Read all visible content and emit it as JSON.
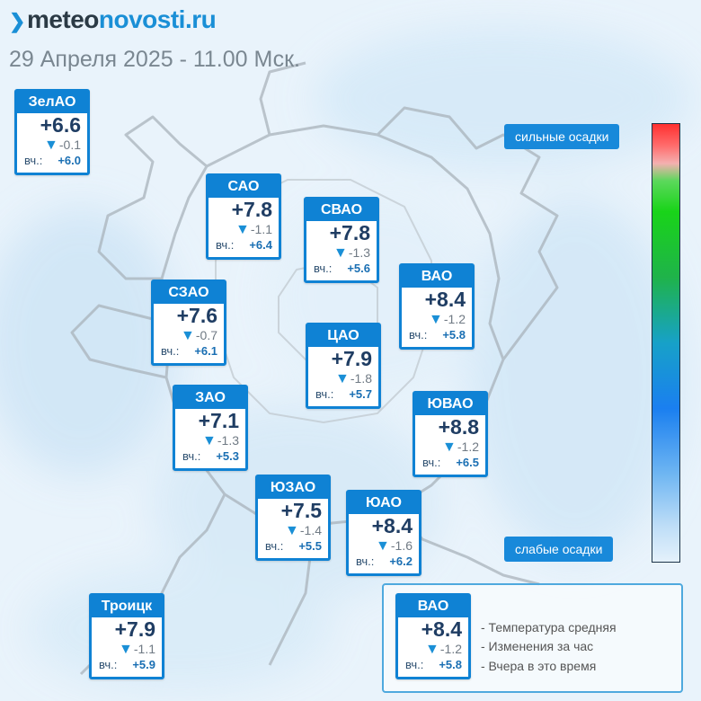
{
  "header": {
    "logo_part1": "meteo",
    "logo_part2": "novosti.ru",
    "date_time": "29 Апреля 2025 - 11.00 Мск."
  },
  "colors": {
    "accent": "#0f82d4",
    "temp_text": "#1f3d63",
    "change_arrow": "#1a8fd6"
  },
  "districts": [
    {
      "id": "zelao",
      "name": "ЗелАО",
      "temp": "+6.6",
      "change": "-0.1",
      "yesterday_label": "вч.:",
      "yesterday": "+6.0"
    },
    {
      "id": "sao",
      "name": "САО",
      "temp": "+7.8",
      "change": "-1.1",
      "yesterday_label": "вч.:",
      "yesterday": "+6.4"
    },
    {
      "id": "svao",
      "name": "СВАО",
      "temp": "+7.8",
      "change": "-1.3",
      "yesterday_label": "вч.:",
      "yesterday": "+5.6"
    },
    {
      "id": "vao",
      "name": "ВАО",
      "temp": "+8.4",
      "change": "-1.2",
      "yesterday_label": "вч.:",
      "yesterday": "+5.8"
    },
    {
      "id": "szao",
      "name": "СЗАО",
      "temp": "+7.6",
      "change": "-0.7",
      "yesterday_label": "вч.:",
      "yesterday": "+6.1"
    },
    {
      "id": "cao",
      "name": "ЦАО",
      "temp": "+7.9",
      "change": "-1.8",
      "yesterday_label": "вч.:",
      "yesterday": "+5.7"
    },
    {
      "id": "zao",
      "name": "ЗАО",
      "temp": "+7.1",
      "change": "-1.3",
      "yesterday_label": "вч.:",
      "yesterday": "+5.3"
    },
    {
      "id": "yuvao",
      "name": "ЮВАО",
      "temp": "+8.8",
      "change": "-1.2",
      "yesterday_label": "вч.:",
      "yesterday": "+6.5"
    },
    {
      "id": "yuzao",
      "name": "ЮЗАО",
      "temp": "+7.5",
      "change": "-1.4",
      "yesterday_label": "вч.:",
      "yesterday": "+5.5"
    },
    {
      "id": "yuao",
      "name": "ЮАО",
      "temp": "+8.4",
      "change": "-1.6",
      "yesterday_label": "вч.:",
      "yesterday": "+6.2"
    },
    {
      "id": "troitsk",
      "name": "Троицк",
      "temp": "+7.9",
      "change": "-1.1",
      "yesterday_label": "вч.:",
      "yesterday": "+5.9"
    }
  ],
  "precip_scale": {
    "top_label": "сильные осадки",
    "bottom_label": "слабые осадки"
  },
  "legend": {
    "sample": {
      "name": "ВАО",
      "temp": "+8.4",
      "change": "-1.2",
      "yesterday_label": "вч.:",
      "yesterday": "+5.8"
    },
    "line1": "- Температура средняя",
    "line2": "- Изменения за час",
    "line3": "- Вчера в это время"
  }
}
